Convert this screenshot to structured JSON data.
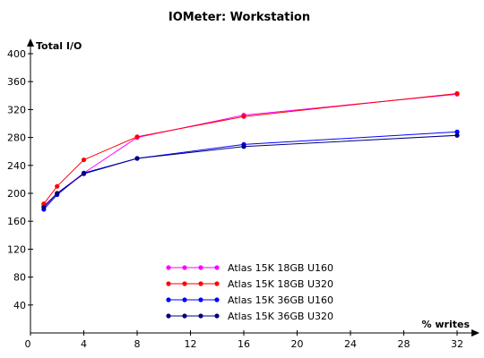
{
  "chart_data": {
    "type": "line",
    "title": "IOMeter: Workstation",
    "ylabel": "Total I/O",
    "xlabel": "% writes",
    "xlim": [
      0,
      32
    ],
    "ylim": [
      0,
      400
    ],
    "x_ticks": [
      0,
      4,
      8,
      12,
      16,
      20,
      24,
      28,
      32
    ],
    "y_ticks": [
      40,
      80,
      120,
      160,
      200,
      240,
      280,
      320,
      360,
      400
    ],
    "grid": false,
    "legend_position": "bottom-center",
    "x": [
      1,
      2,
      4,
      8,
      16,
      32
    ],
    "series": [
      {
        "name": "Atlas 15K 18GB U160",
        "color": "#ff00ff",
        "values": [
          182,
          200,
          229,
          280,
          312,
          342
        ]
      },
      {
        "name": "Atlas 15K 18GB U320",
        "color": "#ff0000",
        "values": [
          185,
          210,
          248,
          281,
          310,
          343
        ]
      },
      {
        "name": "Atlas 15K 36GB U160",
        "color": "#0000ff",
        "values": [
          177,
          198,
          229,
          250,
          270,
          288
        ]
      },
      {
        "name": "Atlas 15K 36GB U320",
        "color": "#000080",
        "values": [
          180,
          200,
          228,
          250,
          267,
          283
        ]
      }
    ]
  }
}
